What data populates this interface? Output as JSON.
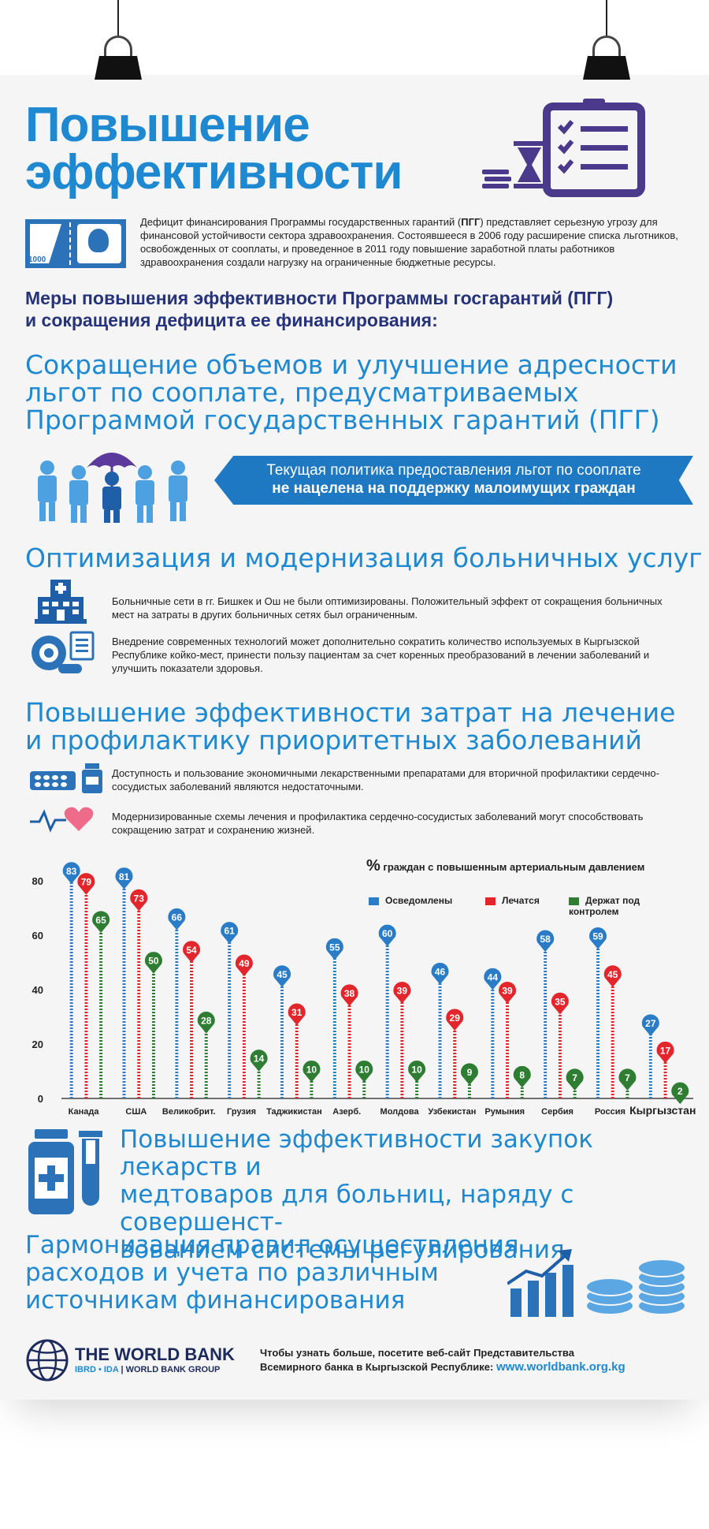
{
  "header": {
    "title_line1": "Повышение",
    "title_line2": "эффективности",
    "banknote_value": "1000"
  },
  "intro": {
    "part1": "Дефицит финансирования Программы государственных гарантий (",
    "bold": "ПГГ",
    "part2": ") представляет серьезную угрозу для финансовой устойчивости сектора здравоохранения. Состоявшееся в 2006 году расширение списка льготников, освобожденных от соoплаты, и проведенное в 2011 году повышение заработной платы работников здравоохранения создали нагрузку на ограниченные бюджетные ресурсы."
  },
  "measures_heading": {
    "line1": "Меры повышения эффективности Программы госгарантий (ПГГ)",
    "line2": "и сокращения дефицита ее финансирования:"
  },
  "section1": {
    "line1": "Сокращение объемов и улучшение адресности",
    "line2": "льгот по соoплате, предусматриваемых",
    "line3": "Программой государственных гарантий (ПГГ)",
    "banner_line1": "Текущая политика предоставления льгот по соoплате",
    "banner_line2": "не нацелена на поддержку малоимущих граждан"
  },
  "section2": {
    "heading": "Оптимизация и модернизация больничных услуг",
    "item1": "Больничные сети в гг. Бишкек и Ош не были оптимизированы. Положительный эффект от сокращения больничных мест на затраты в других больничных сетях был ограниченным.",
    "item2": "Внедрение современных технологий может дополнительно сократить количество используемых в Кыргызской Республике койко-мест, принести пользу пациентам за счет коренных преобразований в лечении заболеваний и улучшить показатели здоровья."
  },
  "section3": {
    "line1": "Повышение эффективности затрат на лечение",
    "line2": "и профилактику приоритетных заболеваний",
    "item1": "Доступность и пользование экономичными лекарственными препаратами  для вторичной профилактики сердечно-сосудистых заболеваний являются недостаточными.",
    "item2": "Модернизированные схемы лечения и профилактика сердечно-сосудистых заболеваний могут способствовать сокращению затрат и сохранению жизней."
  },
  "chart_data": {
    "type": "bar",
    "title_symbol": "%",
    "title": "граждан с повышенным артериальным давлением",
    "categories": [
      "Канада",
      "США",
      "Великобрит.",
      "Грузия",
      "Таджикистан",
      "Азерб.",
      "Молдова",
      "Узбекистан",
      "Румыния",
      "Сербия",
      "Россия",
      "Кыргызстан"
    ],
    "series": [
      {
        "name": "Осведомлены",
        "color": "#2b7cc6",
        "values": [
          83,
          81,
          66,
          61,
          45,
          55,
          60,
          46,
          44,
          58,
          59,
          27
        ]
      },
      {
        "name": "Лечатся",
        "color": "#e3262c",
        "values": [
          79,
          73,
          54,
          49,
          31,
          38,
          39,
          29,
          39,
          35,
          45,
          17
        ]
      },
      {
        "name": "Держат под контролем",
        "color": "#2e7d32",
        "values": [
          65,
          50,
          28,
          14,
          10,
          10,
          10,
          9,
          8,
          7,
          7,
          2
        ]
      }
    ],
    "yticks": [
      0,
      20,
      40,
      60,
      80
    ],
    "ylim": [
      0,
      85
    ],
    "legend": "top-right",
    "grid": true
  },
  "section4": {
    "line1": "Повышение эффективности закупок лекарств и",
    "line2": "медтоваров для больниц, наряду с совершенст-",
    "line3": "вованием системы регулирования"
  },
  "section5": {
    "line1": "Гармонизация правил осуществления",
    "line2": "расходов и учета по различным",
    "line3": "источникам финансирования"
  },
  "footer": {
    "org_name": "THE WORLD BANK",
    "org_sub_accent": "IBRD • IDA",
    "org_sub_sep": " | ",
    "org_sub": "WORLD BANK GROUP",
    "cta_line1": "Чтобы узнать больше, посетите веб-сайт Представительства",
    "cta_line2": "Всемирного банка в Кыргызской Республике:",
    "url": "www.worldbank.org.kg"
  },
  "colors": {
    "accent": "#1e88d0",
    "navy": "#26337a",
    "red": "#e3262c",
    "green": "#2e7d32"
  }
}
